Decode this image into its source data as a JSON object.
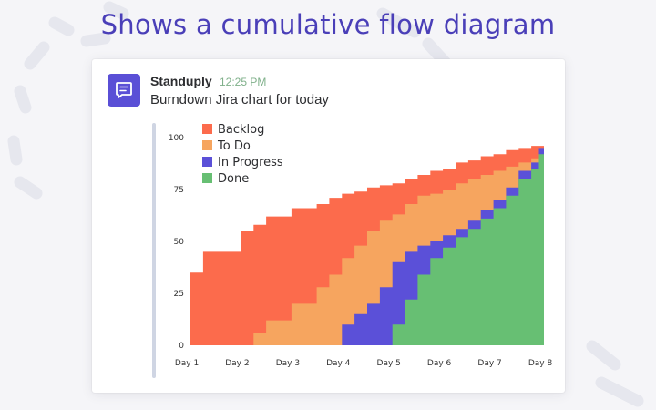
{
  "headline": "Shows a cumulative flow diagram",
  "message": {
    "sender": "Standuply",
    "time": "12:25 PM",
    "text": "Burndown Jira chart for today",
    "avatar_icon": "chat-bubble-icon",
    "accent_color": "#5a4fd6"
  },
  "chart_data": {
    "type": "area",
    "title": "",
    "xlabel": "",
    "ylabel": "",
    "ylim": [
      0,
      100
    ],
    "y_ticks": [
      0,
      25,
      50,
      75,
      100
    ],
    "x_ticks": [
      "Day 1",
      "Day 2",
      "Day 3",
      "Day 4",
      "Day 5",
      "Day 6",
      "Day 7",
      "Day 8"
    ],
    "x_range": [
      0,
      7
    ],
    "step": true,
    "legend_position": "top-left",
    "x": [
      0.0,
      0.25,
      0.75,
      1.0,
      1.25,
      1.5,
      2.0,
      2.5,
      2.75,
      3.0,
      3.25,
      3.5,
      3.75,
      4.0,
      4.25,
      4.5,
      4.75,
      5.0,
      5.25,
      5.5,
      5.75,
      6.0,
      6.25,
      6.5,
      6.75,
      6.9
    ],
    "series": [
      {
        "name": "Done",
        "color": "#67bf73",
        "values": [
          0,
          0,
          0,
          0,
          0,
          0,
          0,
          0,
          0,
          0,
          0,
          0,
          0,
          10,
          22,
          34,
          42,
          47,
          52,
          56,
          61,
          66,
          72,
          80,
          85,
          92
        ]
      },
      {
        "name": "In Progress",
        "color": "#5b50d8",
        "values": [
          0,
          0,
          0,
          0,
          0,
          0,
          0,
          0,
          0,
          10,
          15,
          20,
          28,
          40,
          45,
          48,
          50,
          53,
          56,
          60,
          65,
          70,
          76,
          84,
          88,
          95
        ]
      },
      {
        "name": "To Do",
        "color": "#f6a55f",
        "values": [
          0,
          0,
          0,
          0,
          6,
          12,
          20,
          28,
          34,
          42,
          48,
          55,
          60,
          63,
          68,
          72,
          73,
          75,
          78,
          80,
          82,
          84,
          86,
          88,
          90,
          95
        ]
      },
      {
        "name": "Backlog",
        "color": "#fc6b4c",
        "values": [
          35,
          45,
          45,
          55,
          58,
          62,
          66,
          68,
          71,
          73,
          74,
          76,
          77,
          78,
          80,
          82,
          84,
          85,
          88,
          89,
          91,
          92,
          94,
          95,
          96,
          96
        ]
      }
    ],
    "legend": [
      "Backlog",
      "To Do",
      "In Progress",
      "Done"
    ]
  }
}
